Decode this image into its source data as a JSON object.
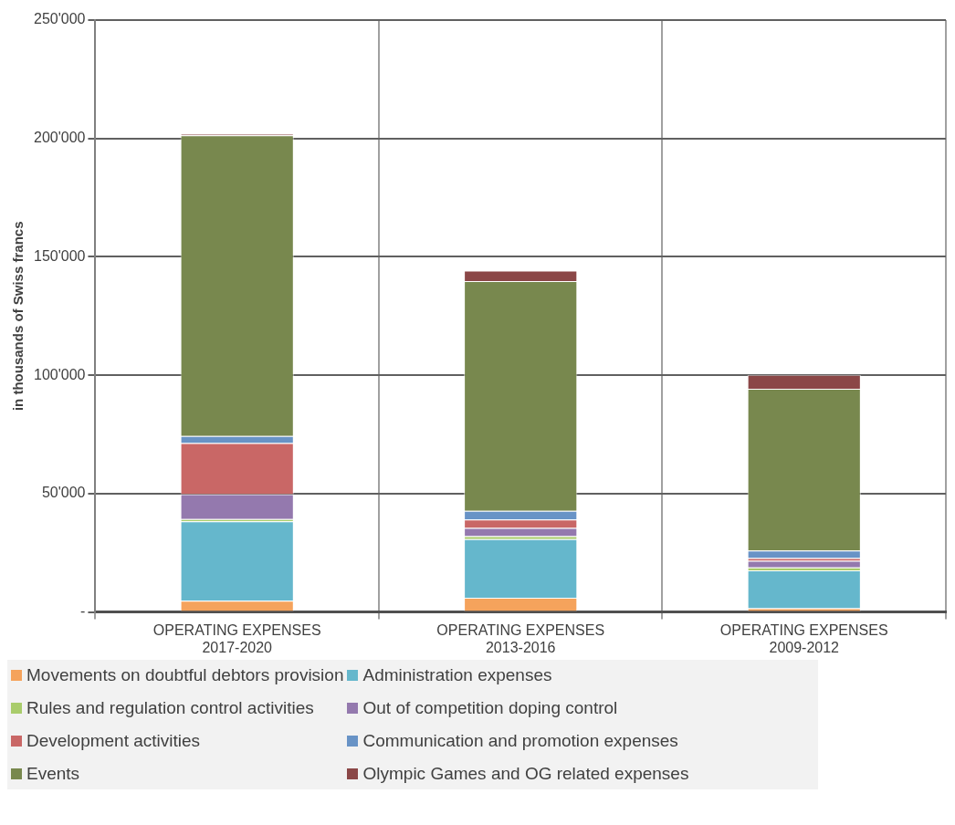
{
  "chart_data": {
    "type": "bar",
    "stacked": true,
    "ylabel": "in thousands of Swiss francs",
    "categories": [
      "OPERATING EXPENSES 2017-2020",
      "OPERATING EXPENSES 2013-2016",
      "OPERATING EXPENSES 2009-2012"
    ],
    "ylim": [
      0,
      250000
    ],
    "yticks": [
      {
        "value": 0,
        "label": "-"
      },
      {
        "value": 50000,
        "label": "50'000"
      },
      {
        "value": 100000,
        "label": "100'000"
      },
      {
        "value": 150000,
        "label": "150'000"
      },
      {
        "value": 200000,
        "label": "200'000"
      },
      {
        "value": 250000,
        "label": "250'000"
      }
    ],
    "grid": true,
    "legend": "bottom",
    "series": [
      {
        "name": "Movements on doubtful debtors provision",
        "color": "#f5a35c",
        "values": [
          4800,
          6000,
          1600
        ]
      },
      {
        "name": "Administration expenses",
        "color": "#65b7cc",
        "values": [
          33500,
          24800,
          16000
        ]
      },
      {
        "name": "Rules and regulation control activities",
        "color": "#a9cc6b",
        "values": [
          1000,
          1200,
          1200
        ]
      },
      {
        "name": "Out of competition doping control",
        "color": "#9479ae",
        "values": [
          10500,
          3500,
          2800
        ]
      },
      {
        "name": "Development activities",
        "color": "#c96766",
        "values": [
          21500,
          3600,
          1200
        ]
      },
      {
        "name": "Communication  and promotion expenses",
        "color": "#6893c6",
        "values": [
          3000,
          3600,
          3200
        ]
      },
      {
        "name": "Events",
        "color": "#78884e",
        "values": [
          127000,
          97100,
          68300
        ]
      },
      {
        "name": "Olympic Games and OG related expenses",
        "color": "#8b4747",
        "values": [
          700,
          4400,
          5900
        ]
      }
    ]
  }
}
